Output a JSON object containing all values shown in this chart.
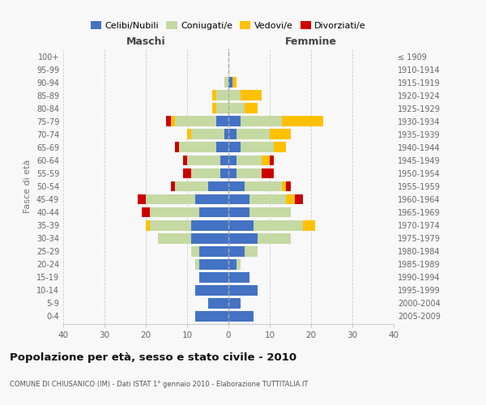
{
  "age_groups": [
    "0-4",
    "5-9",
    "10-14",
    "15-19",
    "20-24",
    "25-29",
    "30-34",
    "35-39",
    "40-44",
    "45-49",
    "50-54",
    "55-59",
    "60-64",
    "65-69",
    "70-74",
    "75-79",
    "80-84",
    "85-89",
    "90-94",
    "95-99",
    "100+"
  ],
  "birth_years": [
    "2005-2009",
    "2000-2004",
    "1995-1999",
    "1990-1994",
    "1985-1989",
    "1980-1984",
    "1975-1979",
    "1970-1974",
    "1965-1969",
    "1960-1964",
    "1955-1959",
    "1950-1954",
    "1945-1949",
    "1940-1944",
    "1935-1939",
    "1930-1934",
    "1925-1929",
    "1920-1924",
    "1915-1919",
    "1910-1914",
    "≤ 1909"
  ],
  "maschi": {
    "celibi": [
      8,
      5,
      8,
      7,
      7,
      7,
      9,
      9,
      7,
      8,
      5,
      2,
      2,
      3,
      1,
      3,
      0,
      0,
      0,
      0,
      0
    ],
    "coniugati": [
      0,
      0,
      0,
      0,
      1,
      2,
      8,
      10,
      12,
      12,
      8,
      7,
      8,
      9,
      8,
      10,
      3,
      3,
      1,
      0,
      0
    ],
    "vedovi": [
      0,
      0,
      0,
      0,
      0,
      0,
      0,
      1,
      0,
      0,
      0,
      0,
      0,
      0,
      1,
      1,
      1,
      1,
      0,
      0,
      0
    ],
    "divorziati": [
      0,
      0,
      0,
      0,
      0,
      0,
      0,
      0,
      2,
      2,
      1,
      2,
      1,
      1,
      0,
      1,
      0,
      0,
      0,
      0,
      0
    ]
  },
  "femmine": {
    "nubili": [
      6,
      3,
      7,
      5,
      2,
      4,
      7,
      6,
      5,
      5,
      4,
      2,
      2,
      3,
      2,
      3,
      0,
      0,
      1,
      0,
      0
    ],
    "coniugate": [
      0,
      0,
      0,
      0,
      1,
      3,
      8,
      12,
      10,
      9,
      9,
      6,
      6,
      8,
      8,
      10,
      4,
      3,
      0,
      0,
      0
    ],
    "vedove": [
      0,
      0,
      0,
      0,
      0,
      0,
      0,
      3,
      0,
      2,
      1,
      0,
      2,
      3,
      5,
      10,
      3,
      5,
      1,
      0,
      0
    ],
    "divorziate": [
      0,
      0,
      0,
      0,
      0,
      0,
      0,
      0,
      0,
      2,
      1,
      3,
      1,
      0,
      0,
      0,
      0,
      0,
      0,
      0,
      0
    ]
  },
  "colors": {
    "celibi": "#4472c4",
    "coniugati": "#c5d9a3",
    "vedovi": "#ffc000",
    "divorziati": "#cc0000"
  },
  "xlim": 40,
  "title": "Popolazione per età, sesso e stato civile - 2010",
  "subtitle": "COMUNE DI CHIUSANICO (IM) - Dati ISTAT 1° gennaio 2010 - Elaborazione TUTTITALIA.IT",
  "ylabel_left": "Fasce di età",
  "xlabel_left": "Maschi",
  "xlabel_right": "Femmine",
  "bg_color": "#f8f8f8",
  "grid_color": "#cccccc"
}
